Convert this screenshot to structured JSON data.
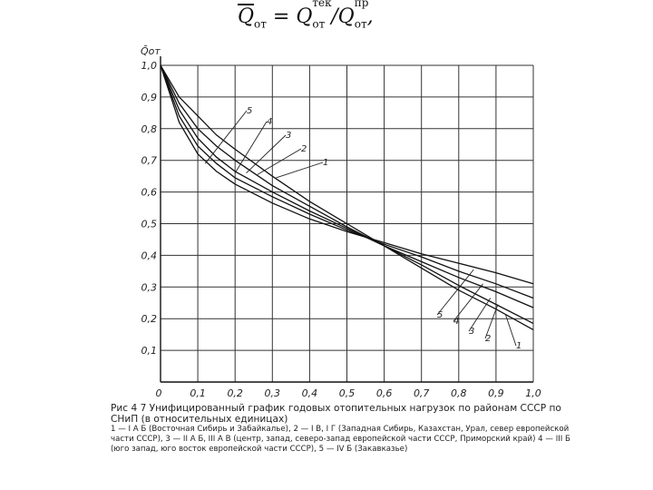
{
  "formula": {
    "lhs": "Q",
    "lhs_sub": "от",
    "eq": " = Q",
    "num_sup": "тек",
    "num_sub": "от",
    "div": " /Q",
    "den_sup": "пр",
    "den_sub": "от",
    "tail": ","
  },
  "caption": {
    "title": "Рис 4 7 Унифицированный график годовых отопительных нагрузок по районам СССР по СНиП (в относительных единицах)",
    "legend": "1 — I А Б (Восточная Сибирь и Забайкалье), 2 — I В, I Г (Западная Сибирь, Казахстан, Урал, север европейской части СССР), 3 — II А Б, III А В (центр, запад, северо-запад европейской части СССР, Приморский край) 4 — III Б (юго запад, юго восток европейской части СССР), 5 — IV Б (Закавказье)"
  },
  "chart_data": {
    "type": "line",
    "title": "",
    "xlabel": "",
    "ylabel": "Q̄от",
    "xlim": [
      0,
      1.0
    ],
    "ylim": [
      0,
      1.0
    ],
    "x_ticks": [
      0,
      0.1,
      0.2,
      0.3,
      0.4,
      0.5,
      0.6,
      0.7,
      0.8,
      0.9,
      1.0
    ],
    "x_tick_labels": [
      "0",
      "0,1",
      "0,2",
      "0,3",
      "0,4",
      "0,5",
      "0,6",
      "0,7",
      "0,8",
      "0,9",
      "1,0"
    ],
    "y_ticks": [
      0.1,
      0.2,
      0.3,
      0.4,
      0.5,
      0.6,
      0.7,
      0.8,
      0.9,
      1.0
    ],
    "y_tick_labels": [
      "0,1",
      "0,2",
      "0,3",
      "0,4",
      "0,5",
      "0,6",
      "0,7",
      "0,8",
      "0,9",
      "1,0"
    ],
    "grid": true,
    "series": [
      {
        "name": "1",
        "x": [
          0,
          0.05,
          0.1,
          0.15,
          0.2,
          0.3,
          0.4,
          0.5,
          0.6,
          0.7,
          0.8,
          0.9,
          1.0
        ],
        "y": [
          1.0,
          0.9,
          0.84,
          0.78,
          0.735,
          0.65,
          0.57,
          0.5,
          0.43,
          0.36,
          0.29,
          0.23,
          0.165
        ]
      },
      {
        "name": "2",
        "x": [
          0,
          0.05,
          0.1,
          0.15,
          0.2,
          0.3,
          0.4,
          0.5,
          0.6,
          0.7,
          0.8,
          0.9,
          1.0
        ],
        "y": [
          1.0,
          0.88,
          0.8,
          0.745,
          0.7,
          0.62,
          0.555,
          0.49,
          0.43,
          0.37,
          0.305,
          0.245,
          0.185
        ]
      },
      {
        "name": "3",
        "x": [
          0,
          0.05,
          0.1,
          0.15,
          0.2,
          0.3,
          0.4,
          0.5,
          0.6,
          0.7,
          0.8,
          0.9,
          1.0
        ],
        "y": [
          1.0,
          0.86,
          0.77,
          0.71,
          0.665,
          0.6,
          0.54,
          0.485,
          0.43,
          0.38,
          0.33,
          0.285,
          0.235
        ]
      },
      {
        "name": "4",
        "x": [
          0,
          0.05,
          0.1,
          0.15,
          0.2,
          0.3,
          0.4,
          0.5,
          0.6,
          0.7,
          0.8,
          0.9,
          1.0
        ],
        "y": [
          1.0,
          0.84,
          0.745,
          0.69,
          0.645,
          0.585,
          0.53,
          0.48,
          0.435,
          0.395,
          0.35,
          0.31,
          0.265
        ]
      },
      {
        "name": "5",
        "x": [
          0,
          0.05,
          0.1,
          0.15,
          0.2,
          0.3,
          0.4,
          0.5,
          0.6,
          0.7,
          0.8,
          0.9,
          1.0
        ],
        "y": [
          1.0,
          0.82,
          0.72,
          0.665,
          0.625,
          0.565,
          0.515,
          0.475,
          0.44,
          0.405,
          0.375,
          0.345,
          0.31
        ]
      }
    ]
  }
}
